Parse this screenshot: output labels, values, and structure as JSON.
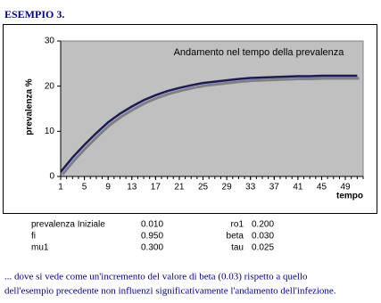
{
  "heading": "ESEMPIO 3.",
  "chart_data": {
    "type": "line",
    "title": "Andamento nel tempo della prevalenza",
    "x_label": "tempo",
    "y_label": "prevalenza %",
    "x": [
      1,
      3,
      5,
      7,
      9,
      11,
      13,
      15,
      17,
      19,
      21,
      23,
      25,
      27,
      29,
      31,
      33,
      35,
      37,
      39,
      41,
      43,
      45,
      47,
      49,
      51
    ],
    "values": [
      1.0,
      4.2,
      7.0,
      9.6,
      12.0,
      13.9,
      15.5,
      16.9,
      18.0,
      18.9,
      19.6,
      20.2,
      20.7,
      21.0,
      21.3,
      21.6,
      21.8,
      21.9,
      22.0,
      22.1,
      22.2,
      22.2,
      22.3,
      22.3,
      22.3,
      22.3
    ],
    "color": "#1a1a5e",
    "xlim": [
      1,
      52
    ],
    "xticks": [
      1,
      5,
      9,
      13,
      17,
      21,
      25,
      29,
      33,
      37,
      41,
      45,
      49
    ],
    "ylim": [
      0,
      30
    ],
    "yticks": [
      0,
      10,
      20,
      30
    ]
  },
  "parameters": [
    [
      "prevalenza Iniziale",
      "0.010",
      "ro1",
      "0.200"
    ],
    [
      "fi",
      "0.950",
      "beta",
      "0.030"
    ],
    [
      "mu1",
      "0.300",
      "tau",
      "0.025"
    ]
  ],
  "footer": [
    "... dove si vede come un'incremento del valore di beta (0.03) rispetto a quello",
    "dell'esempio precedente non influenzi significativamente l'andamento dell'infezione."
  ]
}
